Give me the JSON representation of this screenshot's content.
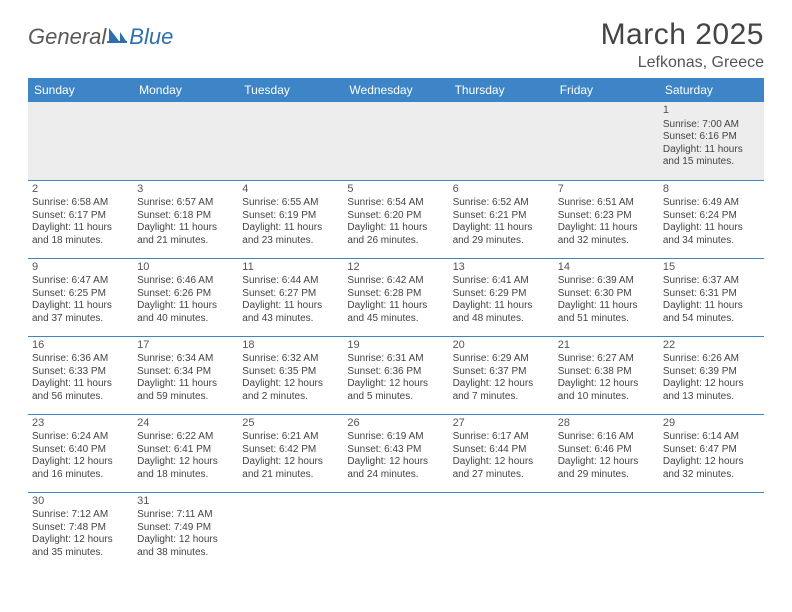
{
  "logo": {
    "part1": "General",
    "part2": "Blue"
  },
  "header": {
    "title": "March 2025",
    "location": "Lefkonas, Greece"
  },
  "colors": {
    "header_bg": "#3d85c6",
    "header_text": "#ffffff",
    "grid_line": "#3d85c6",
    "body_text": "#444444",
    "page_bg": "#ffffff",
    "shade_bg": "#ededed",
    "logo_gray": "#5a5a5a",
    "logo_blue": "#2f6fb0"
  },
  "weekdays": [
    "Sunday",
    "Monday",
    "Tuesday",
    "Wednesday",
    "Thursday",
    "Friday",
    "Saturday"
  ],
  "weeks": [
    [
      null,
      null,
      null,
      null,
      null,
      null,
      {
        "n": "1",
        "sr": "Sunrise: 7:00 AM",
        "ss": "Sunset: 6:16 PM",
        "dl1": "Daylight: 11 hours",
        "dl2": "and 15 minutes."
      }
    ],
    [
      {
        "n": "2",
        "sr": "Sunrise: 6:58 AM",
        "ss": "Sunset: 6:17 PM",
        "dl1": "Daylight: 11 hours",
        "dl2": "and 18 minutes."
      },
      {
        "n": "3",
        "sr": "Sunrise: 6:57 AM",
        "ss": "Sunset: 6:18 PM",
        "dl1": "Daylight: 11 hours",
        "dl2": "and 21 minutes."
      },
      {
        "n": "4",
        "sr": "Sunrise: 6:55 AM",
        "ss": "Sunset: 6:19 PM",
        "dl1": "Daylight: 11 hours",
        "dl2": "and 23 minutes."
      },
      {
        "n": "5",
        "sr": "Sunrise: 6:54 AM",
        "ss": "Sunset: 6:20 PM",
        "dl1": "Daylight: 11 hours",
        "dl2": "and 26 minutes."
      },
      {
        "n": "6",
        "sr": "Sunrise: 6:52 AM",
        "ss": "Sunset: 6:21 PM",
        "dl1": "Daylight: 11 hours",
        "dl2": "and 29 minutes."
      },
      {
        "n": "7",
        "sr": "Sunrise: 6:51 AM",
        "ss": "Sunset: 6:23 PM",
        "dl1": "Daylight: 11 hours",
        "dl2": "and 32 minutes."
      },
      {
        "n": "8",
        "sr": "Sunrise: 6:49 AM",
        "ss": "Sunset: 6:24 PM",
        "dl1": "Daylight: 11 hours",
        "dl2": "and 34 minutes."
      }
    ],
    [
      {
        "n": "9",
        "sr": "Sunrise: 6:47 AM",
        "ss": "Sunset: 6:25 PM",
        "dl1": "Daylight: 11 hours",
        "dl2": "and 37 minutes."
      },
      {
        "n": "10",
        "sr": "Sunrise: 6:46 AM",
        "ss": "Sunset: 6:26 PM",
        "dl1": "Daylight: 11 hours",
        "dl2": "and 40 minutes."
      },
      {
        "n": "11",
        "sr": "Sunrise: 6:44 AM",
        "ss": "Sunset: 6:27 PM",
        "dl1": "Daylight: 11 hours",
        "dl2": "and 43 minutes."
      },
      {
        "n": "12",
        "sr": "Sunrise: 6:42 AM",
        "ss": "Sunset: 6:28 PM",
        "dl1": "Daylight: 11 hours",
        "dl2": "and 45 minutes."
      },
      {
        "n": "13",
        "sr": "Sunrise: 6:41 AM",
        "ss": "Sunset: 6:29 PM",
        "dl1": "Daylight: 11 hours",
        "dl2": "and 48 minutes."
      },
      {
        "n": "14",
        "sr": "Sunrise: 6:39 AM",
        "ss": "Sunset: 6:30 PM",
        "dl1": "Daylight: 11 hours",
        "dl2": "and 51 minutes."
      },
      {
        "n": "15",
        "sr": "Sunrise: 6:37 AM",
        "ss": "Sunset: 6:31 PM",
        "dl1": "Daylight: 11 hours",
        "dl2": "and 54 minutes."
      }
    ],
    [
      {
        "n": "16",
        "sr": "Sunrise: 6:36 AM",
        "ss": "Sunset: 6:33 PM",
        "dl1": "Daylight: 11 hours",
        "dl2": "and 56 minutes."
      },
      {
        "n": "17",
        "sr": "Sunrise: 6:34 AM",
        "ss": "Sunset: 6:34 PM",
        "dl1": "Daylight: 11 hours",
        "dl2": "and 59 minutes."
      },
      {
        "n": "18",
        "sr": "Sunrise: 6:32 AM",
        "ss": "Sunset: 6:35 PM",
        "dl1": "Daylight: 12 hours",
        "dl2": "and 2 minutes."
      },
      {
        "n": "19",
        "sr": "Sunrise: 6:31 AM",
        "ss": "Sunset: 6:36 PM",
        "dl1": "Daylight: 12 hours",
        "dl2": "and 5 minutes."
      },
      {
        "n": "20",
        "sr": "Sunrise: 6:29 AM",
        "ss": "Sunset: 6:37 PM",
        "dl1": "Daylight: 12 hours",
        "dl2": "and 7 minutes."
      },
      {
        "n": "21",
        "sr": "Sunrise: 6:27 AM",
        "ss": "Sunset: 6:38 PM",
        "dl1": "Daylight: 12 hours",
        "dl2": "and 10 minutes."
      },
      {
        "n": "22",
        "sr": "Sunrise: 6:26 AM",
        "ss": "Sunset: 6:39 PM",
        "dl1": "Daylight: 12 hours",
        "dl2": "and 13 minutes."
      }
    ],
    [
      {
        "n": "23",
        "sr": "Sunrise: 6:24 AM",
        "ss": "Sunset: 6:40 PM",
        "dl1": "Daylight: 12 hours",
        "dl2": "and 16 minutes."
      },
      {
        "n": "24",
        "sr": "Sunrise: 6:22 AM",
        "ss": "Sunset: 6:41 PM",
        "dl1": "Daylight: 12 hours",
        "dl2": "and 18 minutes."
      },
      {
        "n": "25",
        "sr": "Sunrise: 6:21 AM",
        "ss": "Sunset: 6:42 PM",
        "dl1": "Daylight: 12 hours",
        "dl2": "and 21 minutes."
      },
      {
        "n": "26",
        "sr": "Sunrise: 6:19 AM",
        "ss": "Sunset: 6:43 PM",
        "dl1": "Daylight: 12 hours",
        "dl2": "and 24 minutes."
      },
      {
        "n": "27",
        "sr": "Sunrise: 6:17 AM",
        "ss": "Sunset: 6:44 PM",
        "dl1": "Daylight: 12 hours",
        "dl2": "and 27 minutes."
      },
      {
        "n": "28",
        "sr": "Sunrise: 6:16 AM",
        "ss": "Sunset: 6:46 PM",
        "dl1": "Daylight: 12 hours",
        "dl2": "and 29 minutes."
      },
      {
        "n": "29",
        "sr": "Sunrise: 6:14 AM",
        "ss": "Sunset: 6:47 PM",
        "dl1": "Daylight: 12 hours",
        "dl2": "and 32 minutes."
      }
    ],
    [
      {
        "n": "30",
        "sr": "Sunrise: 7:12 AM",
        "ss": "Sunset: 7:48 PM",
        "dl1": "Daylight: 12 hours",
        "dl2": "and 35 minutes."
      },
      {
        "n": "31",
        "sr": "Sunrise: 7:11 AM",
        "ss": "Sunset: 7:49 PM",
        "dl1": "Daylight: 12 hours",
        "dl2": "and 38 minutes."
      },
      null,
      null,
      null,
      null,
      null
    ]
  ]
}
